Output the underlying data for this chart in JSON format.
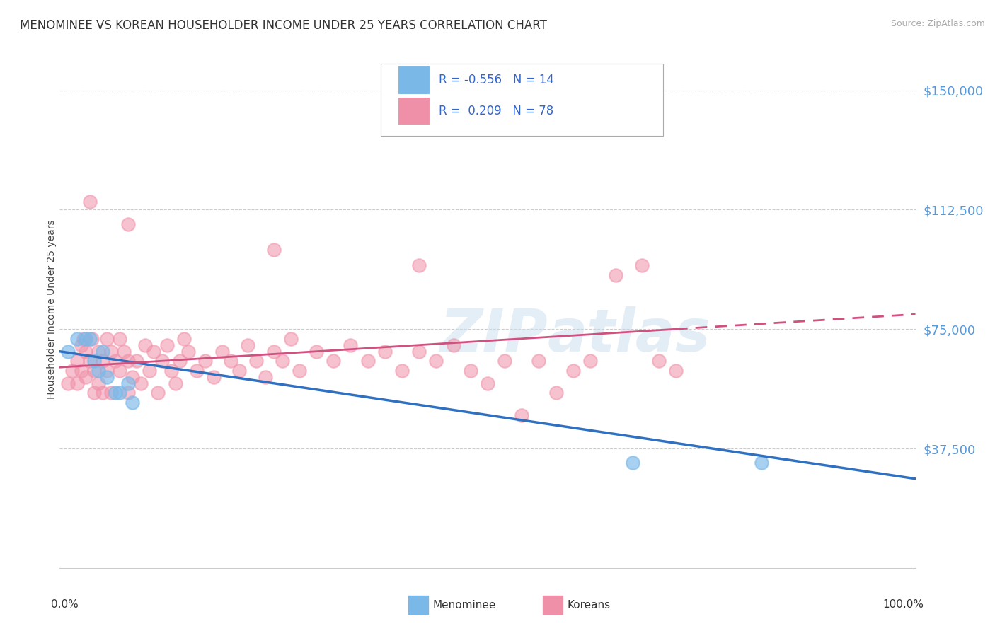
{
  "title": "MENOMINEE VS KOREAN HOUSEHOLDER INCOME UNDER 25 YEARS CORRELATION CHART",
  "source_text": "Source: ZipAtlas.com",
  "ylabel": "Householder Income Under 25 years",
  "ytick_labels": [
    "$37,500",
    "$75,000",
    "$112,500",
    "$150,000"
  ],
  "ytick_values": [
    37500,
    75000,
    112500,
    150000
  ],
  "xlim": [
    0.0,
    100.0
  ],
  "ylim": [
    0,
    162500
  ],
  "menominee_color": "#7ab8e8",
  "koreans_color": "#f090a8",
  "menominee_line_color": "#3070c0",
  "koreans_line_color": "#d05080",
  "grid_color": "#cccccc",
  "background_color": "#ffffff",
  "title_fontsize": 12,
  "legend_box_color": "#aaccee",
  "legend_text_color": "#3366cc",
  "menominee_scatter": [
    [
      1.0,
      68000
    ],
    [
      2.0,
      72000
    ],
    [
      3.0,
      72000
    ],
    [
      3.5,
      72000
    ],
    [
      4.0,
      65000
    ],
    [
      4.5,
      62000
    ],
    [
      5.0,
      68000
    ],
    [
      5.5,
      60000
    ],
    [
      6.5,
      55000
    ],
    [
      7.0,
      55000
    ],
    [
      8.0,
      58000
    ],
    [
      8.5,
      52000
    ],
    [
      67.0,
      33000
    ],
    [
      82.0,
      33000
    ]
  ],
  "koreans_scatter": [
    [
      1.0,
      58000
    ],
    [
      1.5,
      62000
    ],
    [
      2.0,
      65000
    ],
    [
      2.0,
      58000
    ],
    [
      2.5,
      70000
    ],
    [
      2.5,
      62000
    ],
    [
      2.8,
      72000
    ],
    [
      3.0,
      68000
    ],
    [
      3.0,
      60000
    ],
    [
      3.5,
      65000
    ],
    [
      3.8,
      72000
    ],
    [
      4.0,
      62000
    ],
    [
      4.0,
      55000
    ],
    [
      4.5,
      68000
    ],
    [
      4.5,
      58000
    ],
    [
      5.0,
      65000
    ],
    [
      5.0,
      55000
    ],
    [
      5.5,
      62000
    ],
    [
      5.5,
      72000
    ],
    [
      6.0,
      68000
    ],
    [
      6.0,
      55000
    ],
    [
      6.5,
      65000
    ],
    [
      7.0,
      62000
    ],
    [
      7.0,
      72000
    ],
    [
      7.5,
      68000
    ],
    [
      8.0,
      65000
    ],
    [
      8.0,
      55000
    ],
    [
      8.5,
      60000
    ],
    [
      9.0,
      65000
    ],
    [
      9.5,
      58000
    ],
    [
      10.0,
      70000
    ],
    [
      10.5,
      62000
    ],
    [
      11.0,
      68000
    ],
    [
      11.5,
      55000
    ],
    [
      12.0,
      65000
    ],
    [
      12.5,
      70000
    ],
    [
      13.0,
      62000
    ],
    [
      13.5,
      58000
    ],
    [
      14.0,
      65000
    ],
    [
      14.5,
      72000
    ],
    [
      15.0,
      68000
    ],
    [
      16.0,
      62000
    ],
    [
      17.0,
      65000
    ],
    [
      18.0,
      60000
    ],
    [
      19.0,
      68000
    ],
    [
      20.0,
      65000
    ],
    [
      21.0,
      62000
    ],
    [
      22.0,
      70000
    ],
    [
      23.0,
      65000
    ],
    [
      24.0,
      60000
    ],
    [
      25.0,
      68000
    ],
    [
      26.0,
      65000
    ],
    [
      27.0,
      72000
    ],
    [
      28.0,
      62000
    ],
    [
      30.0,
      68000
    ],
    [
      32.0,
      65000
    ],
    [
      34.0,
      70000
    ],
    [
      36.0,
      65000
    ],
    [
      38.0,
      68000
    ],
    [
      40.0,
      62000
    ],
    [
      42.0,
      68000
    ],
    [
      44.0,
      65000
    ],
    [
      46.0,
      70000
    ],
    [
      48.0,
      62000
    ],
    [
      50.0,
      58000
    ],
    [
      52.0,
      65000
    ],
    [
      54.0,
      48000
    ],
    [
      56.0,
      65000
    ],
    [
      58.0,
      55000
    ],
    [
      60.0,
      62000
    ],
    [
      62.0,
      65000
    ],
    [
      65.0,
      92000
    ],
    [
      68.0,
      95000
    ],
    [
      70.0,
      65000
    ],
    [
      72.0,
      62000
    ],
    [
      3.5,
      115000
    ],
    [
      8.0,
      108000
    ],
    [
      25.0,
      100000
    ],
    [
      42.0,
      95000
    ]
  ],
  "menominee_line_start_x": 0,
  "menominee_line_end_x": 100,
  "koreans_solid_end_x": 72,
  "koreans_dash_end_x": 100
}
